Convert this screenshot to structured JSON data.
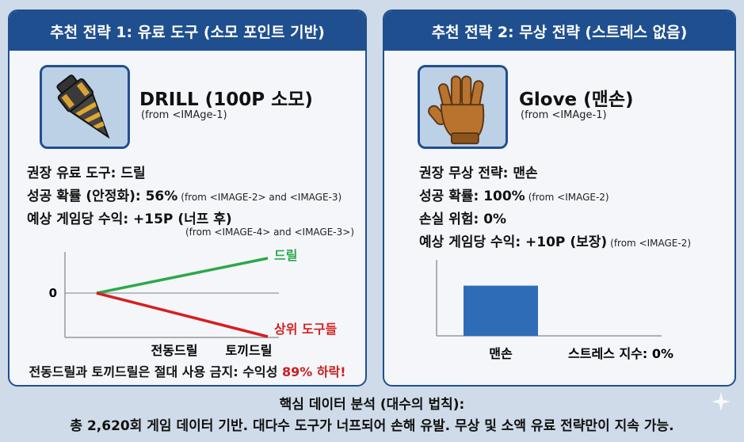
{
  "left": {
    "header": "추천 전략 1: 유료 도구 (소모 포인트 기반)",
    "tool_name": "DRILL (100P 소모)",
    "tool_source": "(from <IMAge-1)",
    "icon": "drill-icon",
    "lines": [
      {
        "label": "권장 유료 도구: 드릴",
        "source": ""
      },
      {
        "label": "성공 확률 (안정화): 56%",
        "source": "(from <IMAGE-2> and <IMAGE-3)"
      },
      {
        "label": "예상 게임당 수익: +15P (너프 후)",
        "source": ""
      }
    ],
    "extra_source": "(from <IMAGE-4> and <IMAGE-3>)",
    "warning_prefix": "전동드릴과 토끼드릴은 절대 사용 금지: 수익성 ",
    "warning_highlight": "89% 하락!"
  },
  "right": {
    "header": "추천 전략 2: 무상 전략 (스트레스 없음)",
    "tool_name": "Glove (맨손)",
    "tool_source": "(from <IMAge-1)",
    "icon": "glove-icon",
    "lines": [
      {
        "label": "권장 무상 전략: 맨손",
        "source": ""
      },
      {
        "label": "성공 확률: 100%",
        "source": "(from <IMAGE-2)"
      },
      {
        "label": "손실 위험: 0%",
        "source": ""
      },
      {
        "label": "예상 게임당 수익: +10P (보장)",
        "source": "(from <IMAGE-2)"
      }
    ]
  },
  "footer": {
    "title": "핵심 데이터 분석 (대수의 법칙):",
    "body": "총 2,620회 게임 데이터 기반. 대다수 도구가 너프되어 손해 유발. 무상 및 소액 유료 전략만이 지속 가능."
  },
  "colors": {
    "header_bg": "#1f4f8f",
    "green": "#2ca84a",
    "red": "#d42020",
    "bar": "#2f6cb8"
  },
  "chart_data": [
    {
      "type": "line",
      "x": [
        0,
        1
      ],
      "y_tick_labels": [
        "0"
      ],
      "category_labels": [
        "전동드릴",
        "토끼드릴"
      ],
      "series": [
        {
          "name": "드릴",
          "values": [
            0,
            1
          ],
          "color": "#2ca84a"
        },
        {
          "name": "상위 도구들",
          "values": [
            0,
            -1.25
          ],
          "color": "#d42020"
        }
      ],
      "ylim": [
        -1.5,
        1.5
      ]
    },
    {
      "type": "bar",
      "categories": [
        "맨손"
      ],
      "values": [
        0.66
      ],
      "ylim": [
        0,
        1
      ],
      "xlabel_note": "스트레스 지수: 0%"
    }
  ]
}
